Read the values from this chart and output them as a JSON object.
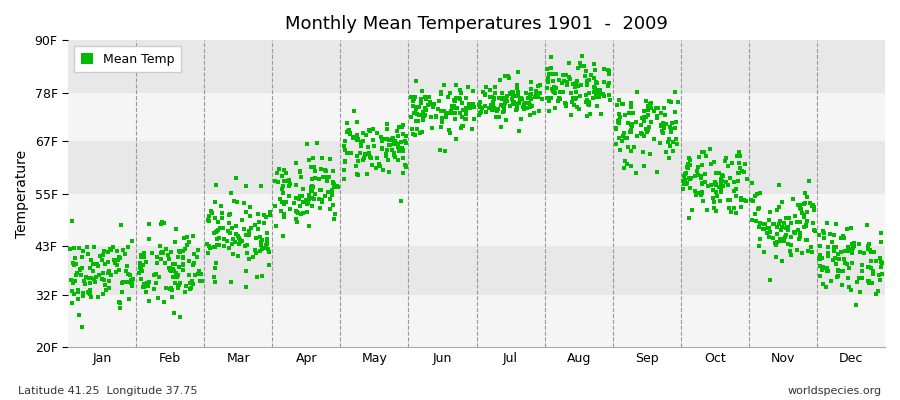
{
  "title": "Monthly Mean Temperatures 1901  -  2009",
  "ylabel": "Temperature",
  "xlabel_bottom_left": "Latitude 41.25  Longitude 37.75",
  "xlabel_bottom_right": "worldspecies.org",
  "ytick_labels": [
    "20F",
    "32F",
    "43F",
    "55F",
    "67F",
    "78F",
    "90F"
  ],
  "ytick_values": [
    20,
    32,
    43,
    55,
    67,
    78,
    90
  ],
  "ylim": [
    20,
    90
  ],
  "month_labels": [
    "Jan",
    "Feb",
    "Mar",
    "Apr",
    "May",
    "Jun",
    "Jul",
    "Aug",
    "Sep",
    "Oct",
    "Nov",
    "Dec"
  ],
  "dot_color": "#00bb00",
  "bg_color_light": "#f5f5f5",
  "bg_color_dark": "#e8e8e8",
  "legend_label": "Mean Temp",
  "seed": 42,
  "monthly_mean_F": [
    36.5,
    37.5,
    46.0,
    56.0,
    65.5,
    73.5,
    76.5,
    78.5,
    70.0,
    58.0,
    48.0,
    40.0
  ],
  "monthly_std_F": [
    4.5,
    5.0,
    4.5,
    4.0,
    3.5,
    3.0,
    2.5,
    3.0,
    4.5,
    4.0,
    4.5,
    4.0
  ],
  "n_years": 109
}
